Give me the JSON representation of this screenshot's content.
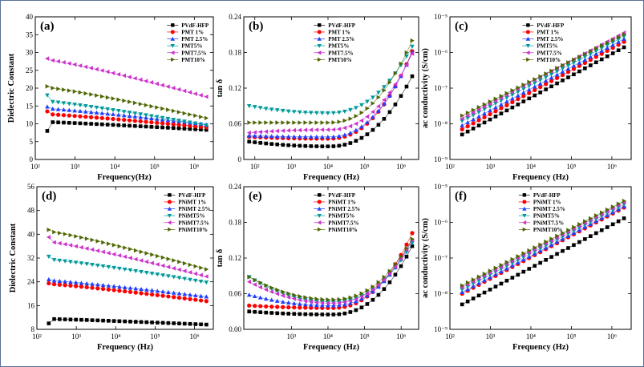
{
  "colors": {
    "border": "#5a6f9a",
    "series": [
      "#000000",
      "#ff0000",
      "#1f3fff",
      "#009999",
      "#cc33cc",
      "#4d6600"
    ]
  },
  "markers": [
    "square",
    "circle",
    "triangle-up",
    "triangle-down",
    "triangle-left",
    "triangle-right"
  ],
  "chart_data": [
    {
      "id": "a",
      "panel_label": "(a)",
      "type": "scatter",
      "xscale": "log",
      "yscale": "linear",
      "xlabel": "Frequency(Hz)",
      "ylabel": "Dielectric Constant",
      "xlim": [
        100,
        3000000
      ],
      "ylim": [
        0,
        40
      ],
      "xticks": [
        100,
        1000,
        10000,
        100000,
        1000000
      ],
      "xtick_labels": [
        "10²",
        "10³",
        "10⁴",
        "10⁵",
        "10⁶"
      ],
      "yticks": [
        0,
        5,
        10,
        15,
        20,
        25,
        30,
        35,
        40
      ],
      "ytick_labels": [
        "0",
        "5",
        "10",
        "15",
        "20",
        "25",
        "30",
        "35",
        "40"
      ],
      "legend_position": "top-right",
      "series": [
        {
          "name": "PVdF-HFP",
          "start": 10.5,
          "end": 8.3,
          "first": 8.0
        },
        {
          "name": "PMT 1%",
          "start": 12.7,
          "end": 9.0,
          "first": 13.5
        },
        {
          "name": "PMT 2.5%",
          "start": 14.3,
          "end": 9.8,
          "first": 14.8
        },
        {
          "name": "PMT5%",
          "start": 16.3,
          "end": 9.6,
          "first": 18.0
        },
        {
          "name": "PMT7.5%",
          "start": 28.0,
          "end": 17.6,
          "first": 28.3
        },
        {
          "name": "PMT10%",
          "start": 20.2,
          "end": 11.6,
          "first": 20.5
        }
      ]
    },
    {
      "id": "b",
      "panel_label": "(b)",
      "type": "scatter",
      "xscale": "log",
      "yscale": "linear",
      "xlabel": "Frequency (Hz)",
      "ylabel": "tan δ",
      "xlim": [
        50,
        3000000
      ],
      "ylim": [
        0,
        0.24
      ],
      "xticks": [
        100,
        1000,
        10000,
        100000,
        1000000
      ],
      "xtick_labels": [
        "10²",
        "10³",
        "10⁴",
        "10⁵",
        "10⁶"
      ],
      "yticks": [
        0,
        0.06,
        0.12,
        0.18,
        0.24
      ],
      "ytick_labels": [
        "0",
        "0.06",
        "0.12",
        "0.18",
        "0.24"
      ],
      "legend_position": "top-left",
      "series": [
        {
          "name": "PVdF-HFP",
          "start": 0.03,
          "min": 0.022,
          "end": 0.14
        },
        {
          "name": "PMT 1%",
          "start": 0.038,
          "min": 0.035,
          "end": 0.182
        },
        {
          "name": "PMT 2.5%",
          "start": 0.04,
          "min": 0.038,
          "end": 0.18
        },
        {
          "name": "PMT5%",
          "start": 0.09,
          "min": 0.078,
          "end": 0.19
        },
        {
          "name": "PMT7.5%",
          "start": 0.045,
          "min": 0.05,
          "end": 0.178
        },
        {
          "name": "PMT10%",
          "start": 0.062,
          "min": 0.062,
          "end": 0.2
        }
      ]
    },
    {
      "id": "c",
      "panel_label": "(c)",
      "type": "scatter",
      "xscale": "log",
      "yscale": "log",
      "xlabel": "Frequency (Hz)",
      "ylabel": "ac conductivity (S/cm)",
      "xlim": [
        100,
        3000000
      ],
      "ylim": [
        1e-09,
        1e-05
      ],
      "xticks": [
        100,
        1000,
        10000,
        100000,
        1000000
      ],
      "xtick_labels": [
        "10²",
        "10³",
        "10⁴",
        "10⁵",
        "10⁶"
      ],
      "yticks": [
        1e-09,
        1e-08,
        1e-07,
        1e-06,
        1e-05
      ],
      "ytick_labels": [
        "10⁻⁹",
        "10⁻⁸",
        "10⁻⁷",
        "10⁻⁶",
        "10⁻⁵"
      ],
      "legend_position": "top-left",
      "series": [
        {
          "name": "PVdF-HFP",
          "start": 5e-09,
          "end": 1.4e-06
        },
        {
          "name": "PMT 1%",
          "start": 7e-09,
          "end": 2e-06
        },
        {
          "name": "PMT 2.5%",
          "start": 9e-09,
          "end": 2.4e-06
        },
        {
          "name": "PMT5%",
          "start": 1.2e-08,
          "end": 2.8e-06
        },
        {
          "name": "PMT7.5%",
          "start": 1.4e-08,
          "end": 3.6e-06
        },
        {
          "name": "PMT10%",
          "start": 1.7e-08,
          "end": 3.2e-06
        }
      ]
    },
    {
      "id": "d",
      "panel_label": "(d)",
      "type": "scatter",
      "xscale": "log",
      "yscale": "linear",
      "xlabel": "Frequency (Hz)",
      "ylabel": "Dielectric Constant",
      "xlim": [
        100,
        3000000
      ],
      "ylim": [
        8,
        56
      ],
      "xticks": [
        100,
        1000,
        10000,
        100000,
        1000000
      ],
      "xtick_labels": [
        "10²",
        "10³",
        "10⁴",
        "10⁵",
        "10⁶"
      ],
      "yticks": [
        8,
        16,
        24,
        32,
        40,
        48,
        56
      ],
      "ytick_labels": [
        "8",
        "16",
        "24",
        "32",
        "40",
        "48",
        "56"
      ],
      "legend_position": "top-right",
      "series": [
        {
          "name": "PVdF-HFP",
          "start": 11.5,
          "end": 9.6,
          "first": 10.0
        },
        {
          "name": "PNiMT 1%",
          "start": 23.3,
          "end": 17.5,
          "first": 23.5
        },
        {
          "name": "PNiMT 2.5%",
          "start": 24.5,
          "end": 19.0,
          "first": 24.8
        },
        {
          "name": "PNiMT5%",
          "start": 31.5,
          "end": 23.8,
          "first": 32.5
        },
        {
          "name": "PNiMT7.5%",
          "start": 37.5,
          "end": 25.8,
          "first": 39.0
        },
        {
          "name": "PNiMT10%",
          "start": 41.0,
          "end": 28.2,
          "first": 41.5
        }
      ]
    },
    {
      "id": "e",
      "panel_label": "(e)",
      "type": "scatter",
      "xscale": "log",
      "yscale": "linear",
      "xlabel": "Frequency (Hz)",
      "ylabel": "tan δ",
      "xlim": [
        50,
        3000000
      ],
      "ylim": [
        0,
        0.24
      ],
      "xticks": [
        1000,
        10000,
        100000,
        1000000
      ],
      "xtick_labels": [
        "10³",
        "10⁴",
        "10⁵",
        "10⁶"
      ],
      "yticks": [
        0,
        0.06,
        0.12,
        0.18,
        0.24
      ],
      "ytick_labels": [
        "0.00",
        "0.06",
        "0.12",
        "0.18",
        "0.24"
      ],
      "legend_position": "top-left",
      "series": [
        {
          "name": "PVdF-HFP",
          "start": 0.03,
          "min": 0.025,
          "end": 0.14
        },
        {
          "name": "PNiMT 1%",
          "start": 0.04,
          "min": 0.036,
          "end": 0.162
        },
        {
          "name": "PNiMT 2.5%",
          "start": 0.058,
          "min": 0.04,
          "end": 0.15
        },
        {
          "name": "PNiMT5%",
          "start": 0.088,
          "min": 0.046,
          "end": 0.145
        },
        {
          "name": "PNiMT7.5%",
          "start": 0.08,
          "min": 0.044,
          "end": 0.15
        },
        {
          "name": "PNiMT10%",
          "start": 0.088,
          "min": 0.05,
          "end": 0.152
        }
      ]
    },
    {
      "id": "f",
      "panel_label": "(f)",
      "type": "scatter",
      "xscale": "log",
      "yscale": "log",
      "xlabel": "Frequency (Hz)",
      "ylabel": "ac conductivity (S/cm)",
      "xlim": [
        100,
        3000000
      ],
      "ylim": [
        1e-09,
        1e-05
      ],
      "xticks": [
        100,
        1000,
        10000,
        100000,
        1000000
      ],
      "xtick_labels": [
        "10²",
        "10³",
        "10⁴",
        "10⁵",
        "10⁶"
      ],
      "yticks": [
        1e-09,
        1e-08,
        1e-07,
        1e-06,
        1e-05
      ],
      "ytick_labels": [
        "10⁻⁹",
        "10⁻⁸",
        "10⁻⁷",
        "10⁻⁶",
        "10⁻⁵"
      ],
      "legend_position": "top-left",
      "series": [
        {
          "name": "PVdF-HFP",
          "start": 5e-09,
          "end": 1.3e-06
        },
        {
          "name": "PNiMT 1%",
          "start": 1e-08,
          "end": 2.6e-06
        },
        {
          "name": "PNiMT 2.5%",
          "start": 1.1e-08,
          "end": 2.8e-06
        },
        {
          "name": "PNiMT5%",
          "start": 1.3e-08,
          "end": 3.2e-06
        },
        {
          "name": "PNiMT7.5%",
          "start": 1.5e-08,
          "end": 3.6e-06
        },
        {
          "name": "PNiMT10%",
          "start": 1.7e-08,
          "end": 4e-06
        }
      ]
    }
  ]
}
